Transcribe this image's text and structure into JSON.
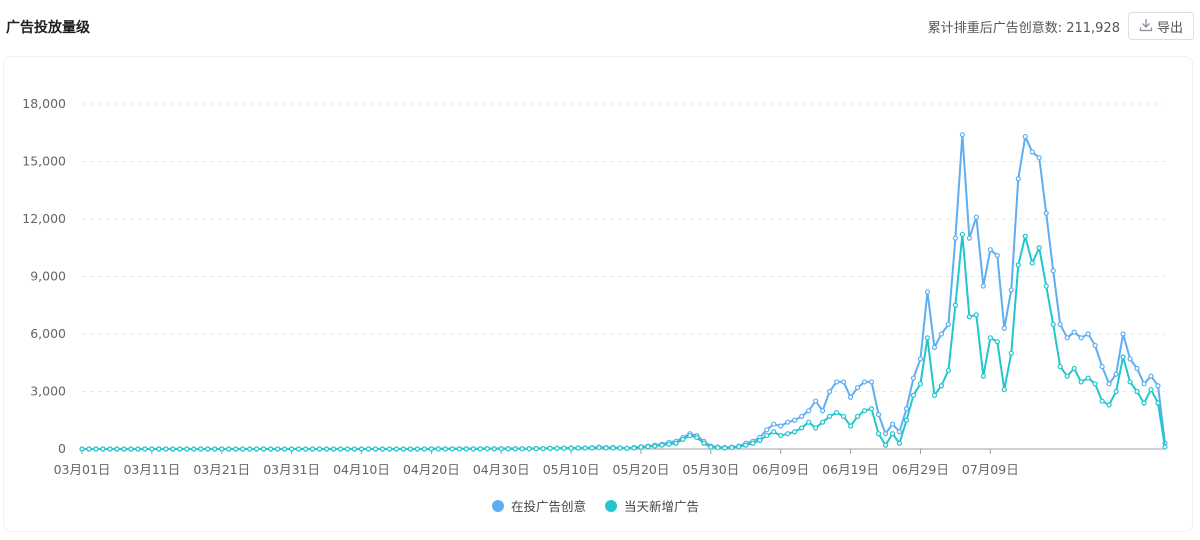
{
  "header": {
    "title": "广告投放量级",
    "count_label": "累计排重后广告创意数: 211,928",
    "export_label": "导出"
  },
  "colors": {
    "series_blue": "#5eaef2",
    "series_teal": "#23c6cd",
    "grid": "#e6e8ee",
    "axis": "#9aa0aa"
  },
  "chart_data": {
    "type": "line",
    "x_ticks": [
      "03月01日",
      "03月11日",
      "03月21日",
      "03月31日",
      "04月10日",
      "04月20日",
      "04月30日",
      "05月10日",
      "05月20日",
      "05月30日",
      "06月09日",
      "06月19日",
      "06月29日",
      "07月09日"
    ],
    "ylim": [
      0,
      18000
    ],
    "y_ticks": [
      "0",
      "3,000",
      "6,000",
      "9,000",
      "12,000",
      "15,000",
      "18,000"
    ],
    "y_tick_values": [
      0,
      3000,
      6000,
      9000,
      12000,
      15000,
      18000
    ],
    "grid": true,
    "legend_position": "bottom-center",
    "series": [
      {
        "name": "在投广告创意",
        "color": "#5eaef2",
        "values": [
          0,
          0,
          0,
          0,
          0,
          0,
          0,
          0,
          0,
          0,
          0,
          0,
          0,
          0,
          0,
          0,
          0,
          0,
          0,
          0,
          0,
          0,
          0,
          0,
          0,
          0,
          0,
          0,
          0,
          0,
          0,
          0,
          0,
          0,
          0,
          0,
          0,
          0,
          0,
          0,
          0,
          0,
          0,
          0,
          0,
          0,
          0,
          0,
          0,
          0,
          10,
          10,
          10,
          10,
          10,
          10,
          10,
          10,
          20,
          20,
          20,
          20,
          20,
          20,
          20,
          30,
          30,
          40,
          40,
          50,
          50,
          60,
          60,
          70,
          100,
          80,
          80,
          60,
          40,
          80,
          120,
          150,
          200,
          250,
          350,
          400,
          600,
          800,
          700,
          400,
          150,
          100,
          80,
          100,
          150,
          300,
          400,
          600,
          1000,
          1300,
          1200,
          1400,
          1500,
          1700,
          2000,
          2500,
          2000,
          3000,
          3500,
          3500,
          2700,
          3200,
          3500,
          3500,
          1800,
          800,
          1300,
          900,
          2100,
          3700,
          4700,
          8200,
          5300,
          6000,
          6500,
          11000,
          16400,
          11000,
          12100,
          8500,
          10400,
          10100,
          6300,
          8300,
          14100,
          16300,
          15500,
          15200,
          12300,
          9300,
          6500,
          5800,
          6100,
          5800,
          6000,
          5400,
          4300,
          3400,
          3900,
          6000,
          4700,
          4200,
          3400,
          3800,
          3300,
          300
        ]
      },
      {
        "name": "当天新增广告",
        "color": "#23c6cd",
        "values": [
          0,
          0,
          0,
          0,
          0,
          0,
          0,
          0,
          0,
          0,
          0,
          0,
          0,
          0,
          0,
          0,
          0,
          0,
          0,
          0,
          0,
          0,
          0,
          0,
          0,
          0,
          0,
          0,
          0,
          0,
          0,
          0,
          0,
          0,
          0,
          0,
          0,
          0,
          0,
          0,
          0,
          0,
          0,
          0,
          0,
          0,
          0,
          0,
          0,
          0,
          5,
          5,
          5,
          5,
          5,
          5,
          5,
          5,
          10,
          10,
          10,
          10,
          10,
          10,
          10,
          20,
          20,
          30,
          30,
          40,
          40,
          50,
          50,
          60,
          80,
          60,
          60,
          50,
          30,
          60,
          100,
          120,
          150,
          200,
          250,
          300,
          500,
          700,
          600,
          300,
          100,
          80,
          60,
          80,
          120,
          200,
          300,
          450,
          700,
          900,
          700,
          800,
          900,
          1100,
          1400,
          1100,
          1400,
          1700,
          1900,
          1700,
          1200,
          1700,
          2000,
          2100,
          800,
          200,
          800,
          300,
          1500,
          2800,
          3400,
          5800,
          2800,
          3300,
          4100,
          7500,
          11200,
          6900,
          7000,
          3800,
          5800,
          5600,
          3100,
          5000,
          9600,
          11100,
          9700,
          10500,
          8500,
          6500,
          4300,
          3800,
          4200,
          3500,
          3700,
          3400,
          2500,
          2300,
          3000,
          4800,
          3500,
          3000,
          2400,
          3100,
          2400,
          100
        ]
      }
    ]
  }
}
